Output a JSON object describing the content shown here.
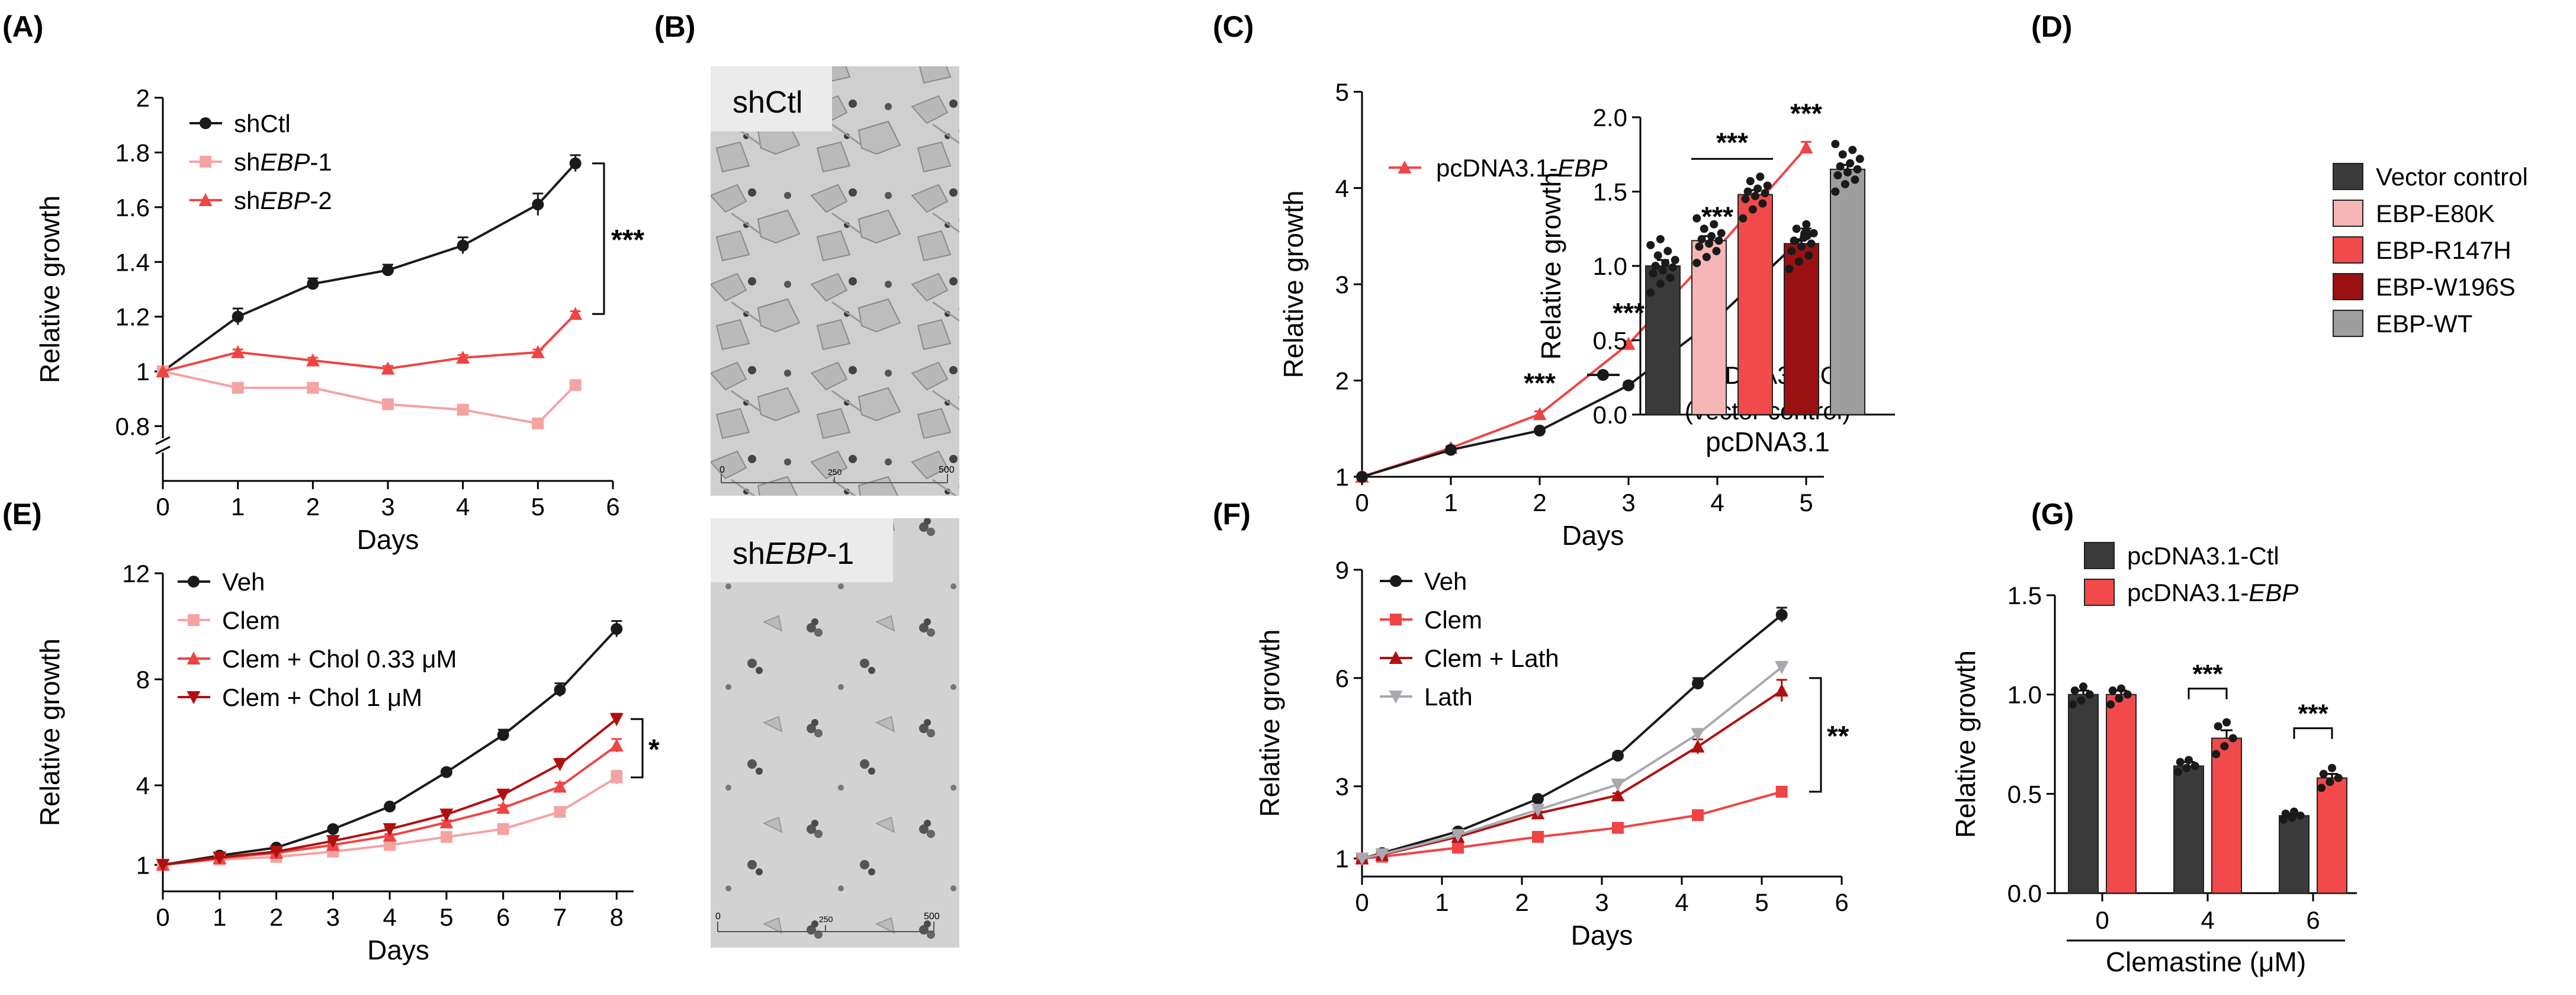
{
  "panel_labels": [
    "(A)",
    "(B)",
    "(C)",
    "(D)",
    "(E)",
    "(F)",
    "(G)"
  ],
  "colors": {
    "black": "#1a1a1a",
    "light_pink": "#f4a3a3",
    "red": "#ef4444",
    "dark_red": "#b01010",
    "bar_dark": "#3a3a3a",
    "bar_pink": "#f7b6b6",
    "bar_red": "#f24a4a",
    "bar_darkred": "#9b1010",
    "bar_grey": "#9e9e9e",
    "lath_grey": "#a8a8b0"
  },
  "micrographs": {
    "top_label": "shCtl",
    "bottom_label_prefix": "sh",
    "bottom_label_italic": "EBP",
    "bottom_label_suffix": "-1",
    "scale_top": {
      "left": "0",
      "mid": "250",
      "right": "500"
    },
    "scale_bottom": {
      "left": "0",
      "mid": "250",
      "right": "500"
    }
  },
  "chart_data": [
    {
      "panel": "A",
      "type": "line",
      "xlabel": "Days",
      "ylabel": "Relative growth",
      "xlim": [
        0,
        6
      ],
      "ylim": [
        0.6,
        2.0
      ],
      "axis_break": true,
      "xticks": [
        0,
        1,
        2,
        3,
        4,
        5,
        6
      ],
      "yticks": [
        0.8,
        1,
        1.2,
        1.4,
        1.6,
        1.8,
        2
      ],
      "ytick_labels": [
        "0.8",
        "1",
        "1.2",
        "1.4",
        "1.6",
        "1.8",
        "2"
      ],
      "legend_position": "top-left",
      "annotation": "***",
      "series": [
        {
          "name": "shCtl",
          "name_prefix": "shCtl",
          "name_italic": "",
          "name_suffix": "",
          "marker": "circle",
          "color": "#1a1a1a",
          "x": [
            0,
            1,
            2,
            3,
            4,
            5,
            5.5
          ],
          "y": [
            1.0,
            1.2,
            1.32,
            1.37,
            1.46,
            1.61,
            1.76
          ],
          "err": [
            0,
            0.03,
            0.02,
            0.02,
            0.03,
            0.04,
            0.03
          ]
        },
        {
          "name": "shEBP-1",
          "name_prefix": "sh",
          "name_italic": "EBP",
          "name_suffix": "-1",
          "marker": "square",
          "color": "#f4a3a3",
          "x": [
            0,
            1,
            2,
            3,
            4,
            5,
            5.5
          ],
          "y": [
            1.0,
            0.94,
            0.94,
            0.88,
            0.86,
            0.81,
            0.95
          ],
          "err": [
            0,
            0.01,
            0.01,
            0.01,
            0.01,
            0.01,
            0.01
          ]
        },
        {
          "name": "shEBP-2",
          "name_prefix": "sh",
          "name_italic": "EBP",
          "name_suffix": "-2",
          "marker": "triangle",
          "color": "#ef4444",
          "x": [
            0,
            1,
            2,
            3,
            4,
            5,
            5.5
          ],
          "y": [
            1.0,
            1.07,
            1.04,
            1.01,
            1.05,
            1.07,
            1.21
          ],
          "err": [
            0,
            0.01,
            0.01,
            0.01,
            0.01,
            0.01,
            0.01
          ]
        }
      ]
    },
    {
      "panel": "C",
      "type": "line",
      "xlabel": "Days",
      "ylabel": "Relative growth",
      "xlim": [
        0,
        5.2
      ],
      "ylim": [
        1,
        5
      ],
      "xticks": [
        0,
        1,
        2,
        3,
        4,
        5
      ],
      "yticks": [
        1,
        2,
        3,
        4,
        5
      ],
      "annotations": [
        {
          "x": 2,
          "text": "***"
        },
        {
          "x": 3,
          "text": "***"
        },
        {
          "x": 4,
          "text": "***"
        },
        {
          "x": 5,
          "text": "***"
        }
      ],
      "series": [
        {
          "name": "pcDNA3.1-EBP",
          "name_prefix": "pcDNA3.1-",
          "name_italic": "EBP",
          "name_suffix": "",
          "marker": "triangle",
          "color": "#ef4444",
          "x": [
            0,
            1,
            2,
            3,
            4,
            5
          ],
          "y": [
            1.0,
            1.3,
            1.65,
            2.38,
            3.37,
            4.42
          ],
          "err": [
            0,
            0.02,
            0.03,
            0.03,
            0.04,
            0.06
          ]
        },
        {
          "name": "pcDNA3.1-Ctl (vector control)",
          "name_prefix": "pcDNA3.1-Ctl",
          "name_line2": "(vector control)",
          "marker": "circle",
          "color": "#1a1a1a",
          "x": [
            0,
            1,
            2,
            3,
            4,
            5
          ],
          "y": [
            1.0,
            1.28,
            1.48,
            1.95,
            2.65,
            3.52
          ],
          "err": [
            0,
            0.02,
            0.02,
            0.03,
            0.03,
            0.06
          ]
        }
      ]
    },
    {
      "panel": "D",
      "type": "bar",
      "xlabel": "pcDNA3.1",
      "ylabel": "Relative growth",
      "ylim": [
        0,
        2.0
      ],
      "yticks": [
        0.0,
        0.5,
        1.0,
        1.5,
        2.0
      ],
      "ytick_labels": [
        "0.0",
        "0.5",
        "1.0",
        "1.5",
        "2.0"
      ],
      "legend_position": "right",
      "annotation": "***",
      "series": [
        {
          "name": "Vector control",
          "value": 1.0,
          "err": 0.04,
          "color": "#3a3a3a",
          "points": [
            0.82,
            0.88,
            0.92,
            0.95,
            0.97,
            0.99,
            1.0,
            1.02,
            1.04,
            1.07,
            1.1,
            1.14,
            1.18
          ]
        },
        {
          "name": "EBP-E80K",
          "value": 1.17,
          "err": 0.03,
          "color": "#f7b6b6",
          "points": [
            1.02,
            1.06,
            1.1,
            1.13,
            1.15,
            1.17,
            1.18,
            1.2,
            1.22,
            1.25,
            1.28,
            1.32
          ]
        },
        {
          "name": "EBP-R147H",
          "value": 1.48,
          "err": 0.03,
          "color": "#f24a4a",
          "points": [
            1.32,
            1.38,
            1.42,
            1.45,
            1.47,
            1.49,
            1.5,
            1.52,
            1.54,
            1.57,
            1.6
          ]
        },
        {
          "name": "EBP-W196S",
          "value": 1.15,
          "err": 0.03,
          "color": "#9b1010",
          "points": [
            0.98,
            1.03,
            1.07,
            1.1,
            1.13,
            1.15,
            1.17,
            1.19,
            1.22,
            1.25,
            1.28
          ]
        },
        {
          "name": "EBP-WT",
          "value": 1.65,
          "err": 0.03,
          "color": "#9e9e9e",
          "points": [
            1.5,
            1.55,
            1.58,
            1.61,
            1.63,
            1.65,
            1.67,
            1.69,
            1.72,
            1.75,
            1.78,
            1.82
          ]
        }
      ]
    },
    {
      "panel": "E",
      "type": "line",
      "xlabel": "Days",
      "ylabel": "Relative growth",
      "xlim": [
        0,
        8.3
      ],
      "ylim": [
        0,
        12
      ],
      "xticks": [
        0,
        1,
        2,
        3,
        4,
        5,
        6,
        7,
        8
      ],
      "yticks": [
        1,
        4,
        8,
        12
      ],
      "legend_position": "top-left",
      "annotation": "*",
      "series": [
        {
          "name": "Veh",
          "marker": "circle",
          "color": "#1a1a1a",
          "x": [
            0,
            1,
            2,
            3,
            4,
            5,
            6,
            7,
            8
          ],
          "y": [
            1.0,
            1.35,
            1.65,
            2.35,
            3.2,
            4.5,
            5.9,
            7.6,
            9.9
          ],
          "err": [
            0,
            0.05,
            0.05,
            0.06,
            0.08,
            0.1,
            0.2,
            0.25,
            0.3
          ]
        },
        {
          "name": "Clem",
          "marker": "square",
          "color": "#f4a3a3",
          "x": [
            0,
            1,
            2,
            3,
            4,
            5,
            6,
            7,
            8
          ],
          "y": [
            1.0,
            1.2,
            1.3,
            1.5,
            1.75,
            2.05,
            2.35,
            3.0,
            4.3
          ],
          "err": [
            0,
            0.03,
            0.03,
            0.04,
            0.05,
            0.06,
            0.08,
            0.15,
            0.25
          ]
        },
        {
          "name": "Clem + Chol 0.33 μM",
          "marker": "triangle",
          "color": "#ef4444",
          "x": [
            0,
            1,
            2,
            3,
            4,
            5,
            6,
            7,
            8
          ],
          "y": [
            1.0,
            1.25,
            1.45,
            1.75,
            2.1,
            2.6,
            3.15,
            3.95,
            5.5
          ],
          "err": [
            0,
            0.03,
            0.04,
            0.05,
            0.06,
            0.08,
            0.1,
            0.15,
            0.25
          ]
        },
        {
          "name": "Clem + Chol 1 μM",
          "marker": "triangle-down",
          "color": "#b01010",
          "x": [
            0,
            1,
            2,
            3,
            4,
            5,
            6,
            7,
            8
          ],
          "y": [
            1.0,
            1.28,
            1.5,
            1.9,
            2.35,
            2.9,
            3.65,
            4.8,
            6.5
          ],
          "err": [
            0,
            0.03,
            0.04,
            0.05,
            0.06,
            0.08,
            0.1,
            0.2,
            0.2
          ]
        }
      ]
    },
    {
      "panel": "F",
      "type": "line",
      "xlabel": "Days",
      "ylabel": "Relative growth",
      "xlim": [
        0,
        6
      ],
      "ylim": [
        0.5,
        9
      ],
      "xticks": [
        0,
        1,
        2,
        3,
        4,
        5,
        6
      ],
      "yticks": [
        1,
        3,
        6,
        9
      ],
      "legend_position": "top-left",
      "annotation": "**",
      "series": [
        {
          "name": "Veh",
          "marker": "circle",
          "color": "#1a1a1a",
          "x": [
            0,
            0.25,
            1.2,
            2.2,
            3.2,
            4.2,
            5.25
          ],
          "y": [
            1.0,
            1.15,
            1.75,
            2.65,
            3.85,
            5.85,
            7.75
          ],
          "err": [
            0,
            0.03,
            0.05,
            0.06,
            0.08,
            0.15,
            0.2
          ]
        },
        {
          "name": "Clem",
          "marker": "square",
          "color": "#ef4444",
          "x": [
            0,
            0.25,
            1.2,
            2.2,
            3.2,
            4.2,
            5.25
          ],
          "y": [
            1.0,
            1.05,
            1.3,
            1.6,
            1.85,
            2.2,
            2.85
          ],
          "err": [
            0,
            0.02,
            0.03,
            0.03,
            0.04,
            0.05,
            0.06
          ]
        },
        {
          "name": "Clem + Lath",
          "marker": "triangle",
          "color": "#b01010",
          "x": [
            0,
            0.25,
            1.2,
            2.2,
            3.2,
            4.2,
            5.25
          ],
          "y": [
            1.0,
            1.1,
            1.6,
            2.25,
            2.75,
            4.1,
            5.65
          ],
          "err": [
            0,
            0.03,
            0.04,
            0.05,
            0.06,
            0.2,
            0.3
          ]
        },
        {
          "name": "Lath",
          "marker": "triangle-down",
          "color": "#a8a8b0",
          "x": [
            0,
            0.25,
            1.2,
            2.2,
            3.2,
            4.2,
            5.25
          ],
          "y": [
            1.0,
            1.12,
            1.65,
            2.35,
            3.05,
            4.45,
            6.3
          ],
          "err": [
            0,
            0.03,
            0.04,
            0.05,
            0.06,
            0.1,
            0.15
          ]
        }
      ]
    },
    {
      "panel": "G",
      "type": "bar",
      "xlabel": "Clemastine (μM)",
      "ylabel": "Relative growth",
      "ylim": [
        0,
        1.5
      ],
      "yticks": [
        0.0,
        0.5,
        1.0,
        1.5
      ],
      "ytick_labels": [
        "0.0",
        "0.5",
        "1.0",
        "1.5"
      ],
      "categories": [
        "0",
        "4",
        "6"
      ],
      "legend_position": "top",
      "annotations": [
        {
          "category": "4",
          "text": "***"
        },
        {
          "category": "6",
          "text": "***"
        }
      ],
      "series": [
        {
          "name": "pcDNA3.1-Ctl",
          "name_prefix": "pcDNA3.1-Ctl",
          "name_italic": "",
          "color": "#3a3a3a",
          "values": [
            1.0,
            0.64,
            0.39
          ],
          "err": [
            0.02,
            0.02,
            0.01
          ],
          "points": [
            [
              0.95,
              0.97,
              1.0,
              1.02,
              1.04
            ],
            [
              0.61,
              0.63,
              0.64,
              0.66,
              0.67
            ],
            [
              0.37,
              0.38,
              0.39,
              0.4,
              0.41
            ]
          ]
        },
        {
          "name": "pcDNA3.1-EBP",
          "name_prefix": "pcDNA3.1-",
          "name_italic": "EBP",
          "color": "#f24a4a",
          "values": [
            1.0,
            0.78,
            0.58
          ],
          "err": [
            0.02,
            0.04,
            0.02
          ],
          "points": [
            [
              0.95,
              0.98,
              1.0,
              1.02,
              1.03
            ],
            [
              0.7,
              0.74,
              0.78,
              0.84,
              0.86
            ],
            [
              0.53,
              0.56,
              0.58,
              0.6,
              0.63
            ]
          ]
        }
      ]
    }
  ]
}
